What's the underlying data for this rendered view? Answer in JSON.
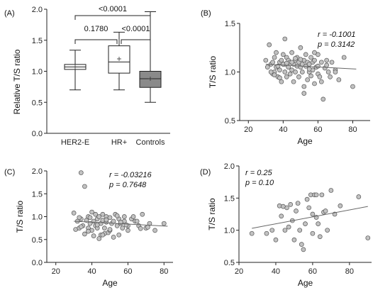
{
  "colors": {
    "point_fill": "#c2c2c2",
    "point_stroke": "#555555",
    "line": "#666666",
    "axis": "#222222",
    "controls_box": "#8a8a8a"
  },
  "chart_data": [
    {
      "panel": "(A)",
      "type": "box",
      "ylabel": "Relative T/S ratio",
      "ylim": [
        0,
        2.0
      ],
      "yticks": [
        "0.0",
        "0.5",
        "1.0",
        "1.5",
        "2.0"
      ],
      "categories": [
        "HER2-E",
        "HR+",
        "Controls"
      ],
      "boxes": [
        {
          "name": "HER2-E",
          "min": 0.7,
          "q1": 1.03,
          "median": 1.07,
          "q3": 1.11,
          "max": 1.34,
          "mean": 1.07,
          "fill": "#ffffff"
        },
        {
          "name": "HR+",
          "min": 0.7,
          "q1": 0.97,
          "median": 1.15,
          "q3": 1.41,
          "max": 1.63,
          "mean": 1.2,
          "fill": "#ffffff"
        },
        {
          "name": "Controls",
          "min": 0.5,
          "q1": 0.74,
          "median": 0.88,
          "q3": 1.0,
          "max": 1.96,
          "mean": 0.88,
          "fill": "#8a8a8a"
        }
      ],
      "comparisons": [
        {
          "from": "HER2-E",
          "to": "Controls",
          "label": "<0.0001"
        },
        {
          "from": "HER2-E",
          "to": "HR+",
          "label": "0.1780"
        },
        {
          "from": "HR+",
          "to": "Controls",
          "label": "<0.0001"
        }
      ]
    },
    {
      "panel": "(B)",
      "type": "scatter",
      "xlabel": "Age",
      "ylabel": "T/S ratio",
      "xlim": [
        15,
        90
      ],
      "ylim": [
        0.5,
        1.5
      ],
      "xticks": [
        "20",
        "40",
        "60",
        "80"
      ],
      "yticks": [
        "0.5",
        "1.0",
        "1.5"
      ],
      "stat_r": "r = -0.1001",
      "stat_p": "p = 0.3142",
      "fit": {
        "x": [
          30,
          82
        ],
        "y": [
          1.08,
          1.03
        ]
      },
      "x": [
        30,
        31,
        32,
        33,
        34,
        34,
        35,
        35,
        36,
        36,
        37,
        37,
        38,
        38,
        39,
        39,
        40,
        40,
        41,
        41,
        41,
        42,
        42,
        43,
        43,
        44,
        44,
        45,
        45,
        46,
        46,
        47,
        47,
        48,
        48,
        49,
        49,
        50,
        50,
        51,
        51,
        52,
        52,
        53,
        53,
        54,
        54,
        55,
        55,
        56,
        56,
        57,
        57,
        58,
        58,
        59,
        60,
        60,
        61,
        62,
        63,
        64,
        65,
        66,
        67,
        68,
        70,
        72,
        75,
        80,
        33,
        40,
        45,
        52,
        60,
        35,
        47,
        55,
        42,
        58,
        62,
        50,
        38,
        65,
        70
      ],
      "y": [
        1.12,
        1.05,
        1.28,
        1.08,
        1.1,
        0.98,
        1.15,
        1.0,
        1.2,
        1.05,
        1.06,
        0.95,
        1.1,
        1.02,
        1.12,
        0.9,
        1.08,
        1.18,
        1.34,
        1.0,
        1.08,
        1.15,
        0.95,
        1.05,
        1.12,
        1.1,
        0.98,
        1.02,
        1.2,
        1.08,
        0.9,
        1.12,
        1.0,
        1.06,
        1.15,
        1.1,
        0.95,
        1.05,
        1.25,
        1.08,
        1.0,
        1.12,
        0.85,
        1.06,
        1.18,
        0.92,
        1.1,
        1.0,
        1.08,
        0.96,
        1.15,
        1.1,
        1.02,
        0.88,
        1.12,
        1.05,
        1.18,
        0.98,
        0.95,
        1.1,
        0.72,
        1.04,
        1.12,
        1.0,
        0.95,
        1.1,
        1.02,
        0.92,
        1.15,
        0.85,
        1.0,
        1.08,
        1.1,
        0.78,
        1.06,
        0.97,
        1.14,
        1.03,
        1.09,
        1.2,
        0.9,
        1.13,
        0.94,
        1.07,
        1.0
      ]
    },
    {
      "panel": "(C)",
      "type": "scatter",
      "xlabel": "Age",
      "ylabel": "T/S ratio",
      "xlim": [
        15,
        85
      ],
      "ylim": [
        0.0,
        2.0
      ],
      "xticks": [
        "20",
        "40",
        "60",
        "80"
      ],
      "yticks": [
        "0.0",
        "0.5",
        "1.0",
        "1.5",
        "2.0"
      ],
      "stat_r": "r = -0.03216",
      "stat_p": "p = 0.7648",
      "fit": {
        "x": [
          30,
          82
        ],
        "y": [
          0.9,
          0.79
        ]
      },
      "x": [
        30,
        31,
        32,
        33,
        34,
        34,
        35,
        36,
        37,
        38,
        38,
        39,
        40,
        40,
        41,
        42,
        42,
        43,
        43,
        44,
        45,
        45,
        46,
        46,
        47,
        48,
        48,
        49,
        50,
        50,
        51,
        52,
        53,
        54,
        55,
        55,
        56,
        57,
        58,
        58,
        60,
        60,
        62,
        64,
        66,
        68,
        70,
        72,
        75,
        80,
        34,
        36,
        44,
        52,
        47,
        41,
        56,
        39,
        50,
        63,
        65,
        43,
        38,
        54,
        48,
        67,
        33,
        59,
        46,
        71
      ],
      "y": [
        1.08,
        0.72,
        0.9,
        0.75,
        1.96,
        0.95,
        0.8,
        1.66,
        0.92,
        1.0,
        0.75,
        0.85,
        1.1,
        0.7,
        0.9,
        0.8,
        1.05,
        0.95,
        0.75,
        1.0,
        0.85,
        0.6,
        1.05,
        0.92,
        0.75,
        1.0,
        0.88,
        0.65,
        0.98,
        0.7,
        0.85,
        0.9,
        1.05,
        0.8,
        0.95,
        0.6,
        0.85,
        0.75,
        1.0,
        0.9,
        0.8,
        0.7,
        0.95,
        0.9,
        0.8,
        1.05,
        0.75,
        0.85,
        0.7,
        0.85,
        0.78,
        0.62,
        0.52,
        0.55,
        0.63,
        0.58,
        0.88,
        0.98,
        0.72,
        1.0,
        0.9,
        0.82,
        0.68,
        1.02,
        0.93,
        0.74,
        0.98,
        0.82,
        0.6,
        0.77
      ]
    },
    {
      "panel": "(D)",
      "type": "scatter",
      "xlabel": "Age",
      "ylabel": "T/S ratio",
      "xlim": [
        20,
        92
      ],
      "ylim": [
        0.5,
        2.0
      ],
      "xticks": [
        "20",
        "40",
        "60",
        "80"
      ],
      "yticks": [
        "0.5",
        "1.0",
        "1.5",
        "2.0"
      ],
      "stat_r": "r = 0.25",
      "stat_p": "p = 0.10",
      "fit": {
        "x": [
          27,
          90
        ],
        "y": [
          1.03,
          1.37
        ]
      },
      "x": [
        27,
        35,
        38,
        40,
        42,
        43,
        45,
        46,
        47,
        48,
        50,
        51,
        52,
        53,
        54,
        55,
        56,
        57,
        58,
        59,
        60,
        60,
        61,
        62,
        63,
        64,
        65,
        66,
        67,
        68,
        70,
        72,
        75,
        85,
        90,
        44,
        49,
        62
      ],
      "y": [
        0.95,
        0.95,
        1.0,
        0.85,
        1.38,
        1.22,
        1.0,
        1.35,
        1.05,
        1.4,
        0.85,
        1.3,
        1.42,
        1.0,
        0.78,
        0.7,
        1.1,
        1.48,
        1.35,
        1.55,
        1.25,
        0.95,
        1.55,
        1.2,
        1.1,
        0.9,
        1.55,
        1.28,
        1.3,
        1.0,
        1.62,
        1.25,
        1.38,
        1.52,
        0.88,
        1.37,
        1.15,
        1.55
      ]
    }
  ]
}
